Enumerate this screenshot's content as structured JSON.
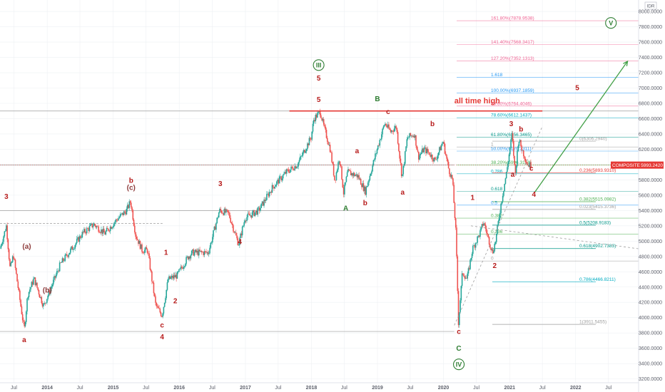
{
  "currency": "IDR",
  "colors": {
    "background": "#ffffff",
    "bull": "#26a69a",
    "bear": "#ef5350",
    "wave_red": "#b71c1c",
    "wave_brown": "#8d3b3b",
    "wave_green": "#2e7d32",
    "price_label": "#e53935",
    "axis_text": "#5d606b",
    "grid": "#eef0f3",
    "fib_grey": "#9e9e9e",
    "fib_green": "#4caf50",
    "fib_teal": "#009688",
    "fib_blue": "#2196f3",
    "fib_cyan": "#00acc1",
    "fib_pink": "#f06292"
  },
  "chart_data": {
    "type": "candlestick",
    "title": "",
    "symbol_label": "COMPOSITE",
    "last_price": 5993.242,
    "last_price_label": "5993.2420",
    "ylim": [
      3150,
      8150
    ],
    "y_ticks": [
      3200,
      3400,
      3600,
      3800,
      4000,
      4200,
      4400,
      4600,
      4800,
      5000,
      5200,
      5400,
      5600,
      5800,
      6000,
      6200,
      6400,
      6600,
      6800,
      7000,
      7200,
      7400,
      7600,
      7800,
      8000
    ],
    "y_tick_labels": [
      "3200.0000",
      "3400.0000",
      "3600.0000",
      "3800.0000",
      "4000.0000",
      "4200.0000",
      "4400.0000",
      "4600.0000",
      "4800.0000",
      "5000.0000",
      "5200.0000",
      "5400.0000",
      "5600.0000",
      "5800.0000",
      "6000.0000",
      "6200.0000",
      "6400.0000",
      "6600.0000",
      "6800.0000",
      "7000.0000",
      "7200.0000",
      "7400.0000",
      "7600.0000",
      "7800.0000",
      "8000.0000"
    ],
    "xlim": [
      "2013-04-15",
      "2022-12-15"
    ],
    "x_ticks": [
      {
        "date": "2013-07-01",
        "label": "Jul"
      },
      {
        "date": "2014-01-01",
        "label": "2014"
      },
      {
        "date": "2014-07-01",
        "label": "Jul"
      },
      {
        "date": "2015-01-01",
        "label": "2015"
      },
      {
        "date": "2015-07-01",
        "label": "Jul"
      },
      {
        "date": "2016-01-01",
        "label": "2016"
      },
      {
        "date": "2016-07-01",
        "label": "Jul"
      },
      {
        "date": "2017-01-01",
        "label": "2017"
      },
      {
        "date": "2017-07-01",
        "label": "Jul"
      },
      {
        "date": "2018-01-01",
        "label": "2018"
      },
      {
        "date": "2018-07-01",
        "label": "Jul"
      },
      {
        "date": "2019-01-01",
        "label": "2019"
      },
      {
        "date": "2019-07-01",
        "label": "Jul"
      },
      {
        "date": "2020-01-01",
        "label": "2020"
      },
      {
        "date": "2020-07-01",
        "label": "Jul"
      },
      {
        "date": "2021-01-01",
        "label": "2021"
      },
      {
        "date": "2021-07-01",
        "label": "Jul"
      },
      {
        "date": "2022-01-01",
        "label": "2022"
      },
      {
        "date": "2022-07-01",
        "label": "Jul"
      }
    ],
    "price_path": [
      [
        "2013-04-15",
        4900
      ],
      [
        "2013-05-20",
        5200
      ],
      [
        "2013-06-10",
        4630
      ],
      [
        "2013-06-28",
        4820
      ],
      [
        "2013-08-27",
        3840
      ],
      [
        "2013-09-15",
        4300
      ],
      [
        "2013-10-20",
        4510
      ],
      [
        "2013-12-12",
        4150
      ],
      [
        "2014-03-15",
        4700
      ],
      [
        "2014-06-01",
        4950
      ],
      [
        "2014-07-15",
        5100
      ],
      [
        "2014-09-15",
        5220
      ],
      [
        "2014-11-15",
        5100
      ],
      [
        "2015-01-20",
        5280
      ],
      [
        "2015-03-15",
        5400
      ],
      [
        "2015-04-07",
        5520
      ],
      [
        "2015-05-05",
        5080
      ],
      [
        "2015-06-10",
        4880
      ],
      [
        "2015-07-10",
        4880
      ],
      [
        "2015-08-24",
        4160
      ],
      [
        "2015-09-28",
        4030
      ],
      [
        "2015-11-01",
        4500
      ],
      [
        "2015-12-20",
        4550
      ],
      [
        "2016-02-20",
        4800
      ],
      [
        "2016-03-15",
        4850
      ],
      [
        "2016-06-10",
        4850
      ],
      [
        "2016-08-10",
        5400
      ],
      [
        "2016-09-30",
        5360
      ],
      [
        "2016-11-24",
        4960
      ],
      [
        "2016-12-30",
        5300
      ],
      [
        "2017-03-15",
        5400
      ],
      [
        "2017-05-30",
        5700
      ],
      [
        "2017-08-15",
        5900
      ],
      [
        "2017-10-15",
        6000
      ],
      [
        "2017-12-30",
        6355
      ],
      [
        "2018-01-15",
        6600
      ],
      [
        "2018-02-19",
        6690
      ],
      [
        "2018-03-10",
        6500
      ],
      [
        "2018-04-15",
        6200
      ],
      [
        "2018-05-10",
        5790
      ],
      [
        "2018-06-05",
        6100
      ],
      [
        "2018-06-28",
        5630
      ],
      [
        "2018-07-20",
        5900
      ],
      [
        "2018-09-15",
        5850
      ],
      [
        "2018-10-26",
        5650
      ],
      [
        "2018-12-30",
        6200
      ],
      [
        "2019-02-10",
        6540
      ],
      [
        "2019-03-15",
        6430
      ],
      [
        "2019-04-15",
        6500
      ],
      [
        "2019-05-17",
        5830
      ],
      [
        "2019-06-15",
        6350
      ],
      [
        "2019-07-25",
        6400
      ],
      [
        "2019-08-15",
        6100
      ],
      [
        "2019-09-15",
        6200
      ],
      [
        "2019-10-15",
        6150
      ],
      [
        "2019-11-15",
        6050
      ],
      [
        "2019-12-30",
        6300
      ],
      [
        "2020-01-30",
        5940
      ],
      [
        "2020-02-20",
        5800
      ],
      [
        "2020-03-10",
        5100
      ],
      [
        "2020-03-24",
        3937
      ],
      [
        "2020-04-15",
        4600
      ],
      [
        "2020-05-10",
        4500
      ],
      [
        "2020-06-10",
        4900
      ],
      [
        "2020-07-20",
        5100
      ],
      [
        "2020-08-10",
        5250
      ],
      [
        "2020-09-28",
        4850
      ],
      [
        "2020-10-15",
        5000
      ],
      [
        "2020-11-15",
        5500
      ],
      [
        "2020-12-15",
        5900
      ],
      [
        "2021-01-14",
        6400
      ],
      [
        "2021-02-01",
        5860
      ],
      [
        "2021-02-19",
        6340
      ],
      [
        "2021-03-10",
        6200
      ],
      [
        "2021-04-10",
        6000
      ],
      [
        "2021-04-28",
        5993
      ]
    ],
    "wave_labels": [
      {
        "text": "3",
        "date": "2013-05-20",
        "price": 5550,
        "color": "wave_red"
      },
      {
        "text": "(a)",
        "date": "2013-09-10",
        "price": 4900,
        "color": "wave_brown"
      },
      {
        "text": "a",
        "date": "2013-08-27",
        "price": 3680,
        "color": "wave_red"
      },
      {
        "text": "(b)",
        "date": "2014-01-01",
        "price": 4330,
        "color": "wave_brown"
      },
      {
        "text": "b",
        "date": "2015-04-10",
        "price": 5760,
        "color": "wave_red"
      },
      {
        "text": "(c)",
        "date": "2015-04-10",
        "price": 5670,
        "color": "wave_brown"
      },
      {
        "text": "1",
        "date": "2015-10-20",
        "price": 4820,
        "color": "wave_red"
      },
      {
        "text": "2",
        "date": "2015-12-10",
        "price": 4190,
        "color": "wave_red"
      },
      {
        "text": "c",
        "date": "2015-09-28",
        "price": 3870,
        "color": "wave_red"
      },
      {
        "text": "4",
        "date": "2015-09-28",
        "price": 3720,
        "color": "wave_red"
      },
      {
        "text": "3",
        "date": "2016-08-15",
        "price": 5720,
        "color": "wave_red"
      },
      {
        "text": "4",
        "date": "2016-12-01",
        "price": 4960,
        "color": "wave_red"
      },
      {
        "text": "5",
        "date": "2018-02-10",
        "price": 7100,
        "color": "wave_red"
      },
      {
        "text": "5",
        "date": "2018-02-10",
        "price": 6820,
        "color": "wave_red"
      },
      {
        "text": "a",
        "date": "2018-09-10",
        "price": 6150,
        "color": "wave_red"
      },
      {
        "text": "A",
        "date": "2018-07-10",
        "price": 5400,
        "color": "wave_green"
      },
      {
        "text": "b",
        "date": "2018-10-25",
        "price": 5470,
        "color": "wave_red"
      },
      {
        "text": "B",
        "date": "2019-01-01",
        "price": 6830,
        "color": "wave_green"
      },
      {
        "text": "c",
        "date": "2019-03-01",
        "price": 6660,
        "color": "wave_red"
      },
      {
        "text": "a",
        "date": "2019-05-20",
        "price": 5610,
        "color": "wave_red"
      },
      {
        "text": "b",
        "date": "2019-11-01",
        "price": 6500,
        "color": "wave_red"
      },
      {
        "text": "c",
        "date": "2020-03-26",
        "price": 3790,
        "color": "wave_red"
      },
      {
        "text": "C",
        "date": "2020-03-26",
        "price": 3570,
        "color": "wave_green"
      },
      {
        "text": "1",
        "date": "2020-06-10",
        "price": 5540,
        "color": "wave_red"
      },
      {
        "text": "2",
        "date": "2020-10-10",
        "price": 4650,
        "color": "wave_red"
      },
      {
        "text": "3",
        "date": "2021-01-10",
        "price": 6500,
        "color": "wave_red"
      },
      {
        "text": "a",
        "date": "2021-01-18",
        "price": 5840,
        "color": "wave_red"
      },
      {
        "text": "b",
        "date": "2021-03-05",
        "price": 6430,
        "color": "wave_red"
      },
      {
        "text": "c",
        "date": "2021-05-01",
        "price": 5920,
        "color": "wave_red"
      },
      {
        "text": "4",
        "date": "2021-05-15",
        "price": 5580,
        "color": "wave_red"
      },
      {
        "text": "5",
        "date": "2022-01-10",
        "price": 6970,
        "color": "wave_red"
      }
    ],
    "circled_labels": [
      {
        "text": "III",
        "date": "2018-02-10",
        "price": 7300
      },
      {
        "text": "IV",
        "date": "2020-03-26",
        "price": 3390
      },
      {
        "text": "V",
        "date": "2022-07-15",
        "price": 7850
      }
    ],
    "annotations": [
      {
        "text": "all time high",
        "date": "2020-03-01",
        "price": 6800,
        "color": "price_label"
      }
    ],
    "ath_line": {
      "from": "2017-09-01",
      "to": "2021-07-01",
      "price": 6700
    },
    "hlines": [
      {
        "price": 6700,
        "from": "2013-04-15",
        "to": "2022-12-15",
        "color": "fib_grey"
      },
      {
        "price": 5230,
        "from": "2013-04-15",
        "to": "2015-10-01",
        "color": "fib_grey",
        "dashed": true
      },
      {
        "price": 5400,
        "from": "2013-04-15",
        "to": "2020-03-01",
        "color": "fib_grey"
      },
      {
        "price": 3820,
        "from": "2013-04-15",
        "to": "2020-03-01",
        "color": "fib_grey"
      },
      {
        "price": 5993,
        "from": "2013-04-15",
        "to": "2020-03-01",
        "color": "fib_grey"
      }
    ],
    "fib_levels": [
      {
        "label": "161.80%(7878.9538)",
        "price": 7879,
        "color": "fib_pink"
      },
      {
        "label": "141.40%(7568.3417)",
        "price": 7568,
        "color": "fib_pink"
      },
      {
        "label": "127.20%(7352.1313)",
        "price": 7352,
        "color": "fib_pink"
      },
      {
        "label": "1.618",
        "price": 7140,
        "color": "fib_blue"
      },
      {
        "label": "100.00%(6937.1859)",
        "price": 6937,
        "color": "fib_blue"
      },
      {
        "label": "88.60%(6764.4046)",
        "price": 6764,
        "color": "fib_pink"
      },
      {
        "label": "78.60%(6612.1437)",
        "price": 6612,
        "color": "fib_cyan"
      },
      {
        "label": "61.80%(6356.3465)",
        "price": 6356,
        "color": "fib_teal"
      },
      {
        "label": "50.00%(6176.3311)",
        "price": 6176,
        "color": "fib_blue"
      },
      {
        "label": "38.20%(5996.3156)",
        "price": 5996,
        "color": "fib_green"
      },
      {
        "label": "0.786",
        "price": 5880,
        "color": "fib_cyan"
      },
      {
        "label": "0.618",
        "price": 5650,
        "color": "fib_teal"
      },
      {
        "label": "0.5",
        "price": 5470,
        "color": "fib_blue"
      },
      {
        "label": "0.382",
        "price": 5300,
        "color": "fib_green"
      },
      {
        "label": "0.236",
        "price": 5090,
        "color": "fib_green"
      },
      {
        "label": "0",
        "price": 4740,
        "color": "fib_grey"
      },
      {
        "label": "1",
        "price": 6230,
        "color": "fib_grey"
      }
    ],
    "retracement_levels": [
      {
        "label": "0(6306.2940)",
        "price": 6306,
        "color": "fib_grey"
      },
      {
        "label": "0.236(5893.9310)",
        "price": 5894,
        "color": "price_label"
      },
      {
        "label": "0.382(5515.0982)",
        "price": 5515,
        "color": "fib_green"
      },
      {
        "label": "0.5(5208.9183)",
        "price": 5209,
        "color": "fib_teal"
      },
      {
        "label": "0.618(4902.7383)",
        "price": 4903,
        "color": "fib_teal"
      },
      {
        "label": "0.786(4466.8211)",
        "price": 4467,
        "color": "fib_cyan"
      },
      {
        "label": "1(3911.5455)",
        "price": 3912,
        "color": "fib_grey"
      },
      {
        "label": "0.023(5415.3736)",
        "price": 5415,
        "color": "fib_grey"
      }
    ],
    "channel_lines": [
      {
        "from": [
          "2020-03-01",
          3900
        ],
        "to": [
          "2021-07-01",
          6500
        ]
      },
      {
        "from": [
          "2020-06-01",
          5200
        ],
        "to": [
          "2022-12-15",
          4900
        ]
      }
    ],
    "projection_arrow": {
      "from": [
        "2021-05-20",
        5640
      ],
      "to": [
        "2022-10-15",
        7350
      ]
    },
    "legend": "none",
    "grid": true
  }
}
